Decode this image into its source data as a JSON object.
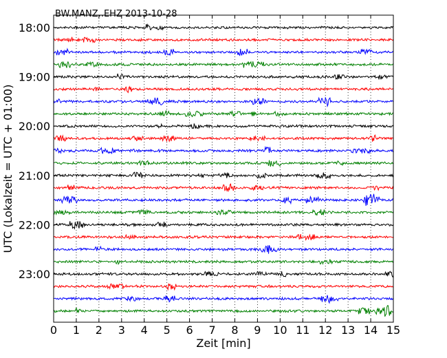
{
  "chart_data": {
    "type": "line",
    "title": "BW.MANZ..EHZ 2013-10-28",
    "xlabel": "Zeit  [min]",
    "ylabel": "UTC (Lokalzeit = UTC + 01:00)",
    "xlim": [
      0,
      15
    ],
    "x_ticks": [
      "0",
      "1",
      "2",
      "3",
      "4",
      "5",
      "6",
      "7",
      "8",
      "9",
      "10",
      "11",
      "12",
      "13",
      "14",
      "15"
    ],
    "y_ticks": [
      "18:00",
      "19:00",
      "20:00",
      "21:00",
      "22:00",
      "23:00"
    ],
    "grid": "vertical dotted",
    "trace_colors": [
      "#000000",
      "#ff0000",
      "#0000ff",
      "#008000"
    ],
    "traces": [
      {
        "start": "18:00"
      },
      {
        "start": "18:15"
      },
      {
        "start": "18:30"
      },
      {
        "start": "18:45"
      },
      {
        "start": "19:00"
      },
      {
        "start": "19:15"
      },
      {
        "start": "19:30"
      },
      {
        "start": "19:45"
      },
      {
        "start": "20:00"
      },
      {
        "start": "20:15"
      },
      {
        "start": "20:30"
      },
      {
        "start": "20:45"
      },
      {
        "start": "21:00"
      },
      {
        "start": "21:15"
      },
      {
        "start": "21:30"
      },
      {
        "start": "21:45"
      },
      {
        "start": "22:00"
      },
      {
        "start": "22:15"
      },
      {
        "start": "22:30"
      },
      {
        "start": "22:45"
      },
      {
        "start": "23:00"
      },
      {
        "start": "23:15"
      },
      {
        "start": "23:30"
      },
      {
        "start": "23:45"
      }
    ]
  }
}
